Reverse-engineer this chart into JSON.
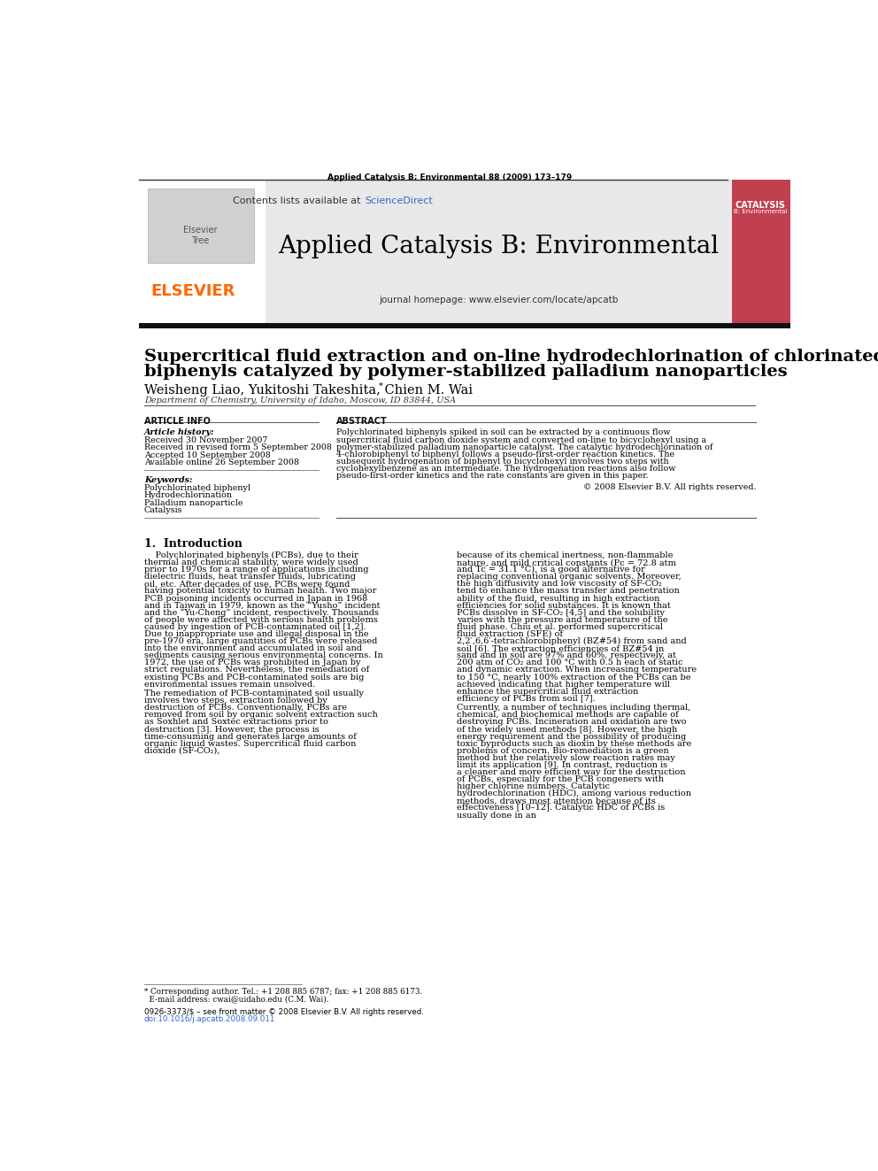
{
  "journal_ref": "Applied Catalysis B; Environmental 88 (2009) 173–179",
  "journal_title": "Applied Catalysis B: Environmental",
  "journal_homepage": "journal homepage: www.elsevier.com/locate/apcatb",
  "contents_line_pre": "Contents lists available at ",
  "contents_sciencedirect": "ScienceDirect",
  "paper_title_line1": "Supercritical fluid extraction and on-line hydrodechlorination of chlorinated",
  "paper_title_line2": "biphenyls catalyzed by polymer-stabilized palladium nanoparticles",
  "authors": "Weisheng Liao, Yukitoshi Takeshita, Chien M. Wai",
  "affiliation": "Department of Chemistry, University of Idaho, Moscow, ID 83844, USA",
  "article_history_label": "Article history:",
  "article_history_lines": [
    "Received 30 November 2007",
    "Received in revised form 5 September 2008",
    "Accepted 10 September 2008",
    "Available online 26 September 2008"
  ],
  "keywords_label": "Keywords:",
  "keywords_lines": [
    "Polychlorinated biphenyl",
    "Hydrodechlorination",
    "Palladium nanoparticle",
    "Catalysis"
  ],
  "abstract_label": "ABSTRACT",
  "abstract_text": "Polychlorinated biphenyls spiked in soil can be extracted by a continuous flow supercritical fluid carbon dioxide system and converted on-line to bicyclohexyl using a polymer-stabilized palladium nanoparticle catalyst. The catalytic hydrodechlorination of 4-chlorobiphenyl to biphenyl follows a pseudo-first-order reaction kinetics. The subsequent hydrogenation of biphenyl to bicyclohexyl involves two steps with cyclohexylbenzene as an intermediate. The hydrogenation reactions also follow pseudo-first-order kinetics and the rate constants are given in this paper.",
  "copyright": "© 2008 Elsevier B.V. All rights reserved.",
  "article_info_label": "ARTICLE INFO",
  "section1_title": "1.  Introduction",
  "section1_col1_para1": "Polychlorinated biphenyls (PCBs), due to their thermal and chemical stability, were widely used prior to 1970s for a range of applications including dielectric fluids, heat transfer fluids, lubricating oil, etc. After decades of use, PCBs were found having potential toxicity to human health. Two major PCB poisoning incidents occurred in Japan in 1968 and in Taiwan in 1979, known as the “Yusho” incident and the “Yu-Cheng” incident, respectively. Thousands of people were affected with serious health problems caused by ingestion of PCB-contaminated oil [1,2]. Due to inappropriate use and illegal disposal in the pre-1970 era, large quantities of PCBs were released into the environment and accumulated in soil and sediments causing serious environmental concerns. In 1972, the use of PCBs was prohibited in Japan by strict regulations. Nevertheless, the remediation of existing PCBs and PCB-contaminated soils are big environmental issues remain unsolved.",
  "section1_col1_para2": "    The remediation of PCB-contaminated soil usually involves two steps, extraction followed by destruction of PCBs. Conventionally, PCBs are removed from soil by organic solvent extraction such as Soxhlet and Soxtec extractions prior to destruction [3]. However, the process is time-consuming and generates large amounts of organic liquid wastes. Supercritical fluid carbon dioxide (SF-CO₂),",
  "section1_col2_para1": "because of its chemical inertness, non-flammable nature, and mild critical constants (Pc = 72.8 atm and Tc = 31.1 °C), is a good alternative for replacing conventional organic solvents. Moreover, the high diffusivity and low viscosity of SF-CO₂ tend to enhance the mass transfer and penetration ability of the fluid, resulting in high extraction efficiencies for solid substances. It is known that PCBs dissolve in SF-CO₂ [4,5] and the solubility varies with the pressure and temperature of the fluid phase. Chiu et al. performed supercritical fluid extraction (SFE) of 2,2′,6,6′-tetrachlorobiphenyl (BZ#54) from sand and soil [6]. The extraction efficiencies of BZ#54 in sand and in soil are 97% and 60%, respectively, at 200 atm of CO₂ and 100 °C with 0.5 h each of static and dynamic extraction. When increasing temperature to 150 °C, nearly 100% extraction of the PCBs can be achieved indicating that higher temperature will enhance the supercritical fluid extraction efficiency of PCBs from soil [7].",
  "section1_col2_para2": "    Currently, a number of techniques including thermal, chemical, and biochemical methods are capable of destroying PCBs. Incineration and oxidation are two of the widely used methods [8]. However, the high energy requirement and the possibility of producing toxic byproducts such as dioxin by these methods are problems of concern. Bio-remediation is a green method but the relatively slow reaction rates may limit its application [9]. In contrast, reduction is a cleaner and more efficient way for the destruction of PCBs, especially for the PCB congeners with higher chlorine numbers. Catalytic hydrodechlorination (HDC), among various reduction methods, draws most attention because of its effectiveness [10–12]. Catalytic HDC of PCBs is usually done in an",
  "footnote_lines": [
    "* Corresponding author. Tel.: +1 208 885 6787; fax: +1 208 885 6173.",
    "  E-mail address: cwai@uidaho.edu (C.M. Wai)."
  ],
  "issn_line": "0926-3373/$ – see front matter © 2008 Elsevier B.V. All rights reserved.",
  "doi_line": "doi:10.1016/j.apcatb.2008.09.011",
  "bg_color": "#ffffff",
  "gray_header_color": "#e8e8e8",
  "elsevier_orange": "#FF6600",
  "sciencedirect_blue": "#3366cc",
  "thick_bar_color": "#111111",
  "line_color": "#555555",
  "cover_red": "#c04050"
}
